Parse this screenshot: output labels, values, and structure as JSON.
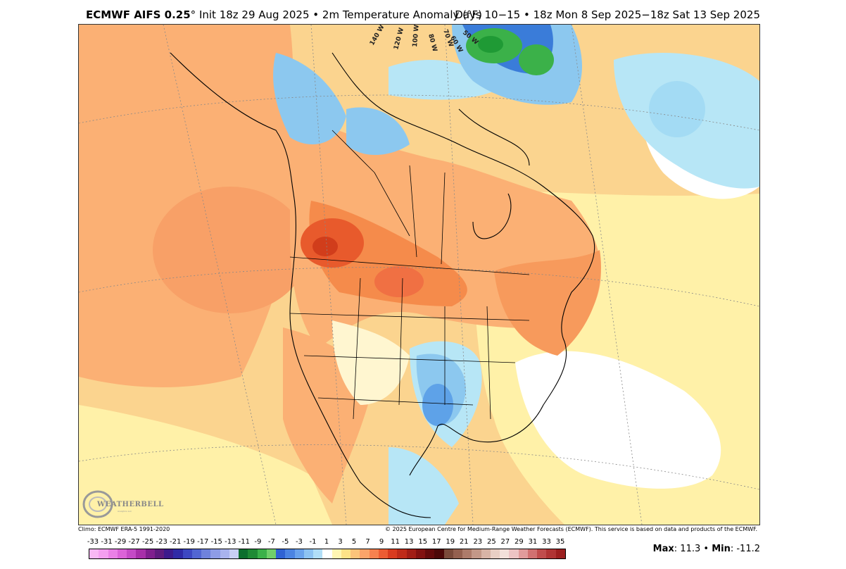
{
  "header": {
    "model": "ECMWF AIFS 0.25",
    "degree": "°",
    "init_text": "Init 18z 29 Aug 2025 • 2m Temperature Anomaly (°F)",
    "valid_text": "Days 10−15 • 18z Mon 8 Sep 2025−18z Sat 13 Sep 2025"
  },
  "map": {
    "longitude_labels": [
      "140 W",
      "120 W",
      "100 W",
      "80 W",
      "70 W",
      "60 W",
      "50 W"
    ],
    "palette": {
      "light_orange": "#fbd48f",
      "orange": "#fbb074",
      "dark_orange": "#f58b4b",
      "red_orange": "#e85a2c",
      "red": "#d13d1b",
      "light_yellow": "#fff1a8",
      "pale_blue": "#b7e6f6",
      "light_blue": "#8cc8ef",
      "blue": "#5ea2e8",
      "dark_blue": "#3a7cd9",
      "green": "#3bb149",
      "dark_green": "#1f9a35"
    }
  },
  "logo": {
    "name": "WEATHERBELL",
    "tagline": "Analytics LLC"
  },
  "footer": {
    "climo": "Climo: ECMWF ERA-5 1991-2020",
    "copyright": "© 2025 European Centre for Medium-Range Weather Forecasts (ECMWF). This service is based on data and products of the ECMWF."
  },
  "colorbar": {
    "labels": [
      "-33",
      "-31",
      "-29",
      "-27",
      "-25",
      "-23",
      "-21",
      "-19",
      "-17",
      "-15",
      "-13",
      "-11",
      "-9",
      "-7",
      "-5",
      "-3",
      "-1",
      "1",
      "3",
      "5",
      "7",
      "9",
      "11",
      "13",
      "15",
      "17",
      "19",
      "21",
      "23",
      "25",
      "27",
      "29",
      "31",
      "33",
      "35"
    ],
    "colors": [
      "#f9b8f4",
      "#f49ff0",
      "#ea80e6",
      "#db63d8",
      "#c44ac6",
      "#a72fa9",
      "#7f1f8e",
      "#5e1b7e",
      "#3c1a8c",
      "#2f2aa6",
      "#3d48c2",
      "#5266d2",
      "#6f82dc",
      "#8e9ce6",
      "#a9b3ee",
      "#c8cff5",
      "#0d6e2e",
      "#1f8a35",
      "#3bb149",
      "#70cf6a",
      "#2f62d3",
      "#4b83e2",
      "#6aa2ec",
      "#8ec3f2",
      "#b1def7",
      "#ffffff",
      "#fff6b3",
      "#fde388",
      "#fcc47a",
      "#fba46a",
      "#f6814f",
      "#ec5c33",
      "#d93b1f",
      "#bf2b19",
      "#a11d15",
      "#821110",
      "#640a0b",
      "#4c0808",
      "#7a4a3a",
      "#94604f",
      "#ad7b6a",
      "#c39888",
      "#d8b4a6",
      "#e9cfc4",
      "#f3e0da",
      "#edc4c4",
      "#e19b9b",
      "#d17171",
      "#c04c4c",
      "#b03434",
      "#9c1f1f"
    ]
  },
  "stats": {
    "max_label": "Max",
    "max_value": ": 11.3",
    "sep": " • ",
    "min_label": "Min",
    "min_value": ": -11.2"
  }
}
